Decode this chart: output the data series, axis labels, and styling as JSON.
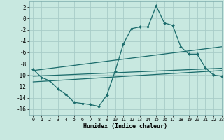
{
  "xlabel": "Humidex (Indice chaleur)",
  "xlim": [
    -0.5,
    23
  ],
  "ylim": [
    -17,
    3
  ],
  "yticks": [
    2,
    0,
    -2,
    -4,
    -6,
    -8,
    -10,
    -12,
    -14,
    -16
  ],
  "xticks": [
    0,
    1,
    2,
    3,
    4,
    5,
    6,
    7,
    8,
    9,
    10,
    11,
    12,
    13,
    14,
    15,
    16,
    17,
    18,
    19,
    20,
    21,
    22,
    23
  ],
  "bg_color": "#c8e8e0",
  "grid_color": "#a8ccc8",
  "line_color": "#1a6b6b",
  "curve_x": [
    0,
    1,
    2,
    3,
    4,
    5,
    6,
    7,
    8,
    9,
    10,
    11,
    12,
    13,
    14,
    15,
    16,
    17,
    18,
    19,
    20,
    21,
    22,
    23
  ],
  "curve_y": [
    -9.0,
    -10.4,
    -11.0,
    -12.4,
    -13.4,
    -14.8,
    -15.0,
    -15.2,
    -15.5,
    -13.5,
    -9.3,
    -4.5,
    -1.8,
    -1.5,
    -1.5,
    2.2,
    -0.8,
    -1.2,
    -5.0,
    -6.3,
    -6.3,
    -8.7,
    -10.0,
    -10.2
  ],
  "trend1_x": [
    0,
    23
  ],
  "trend1_y": [
    -9.2,
    -5.0
  ],
  "trend2_x": [
    0,
    23
  ],
  "trend2_y": [
    -10.2,
    -8.8
  ],
  "trend3_x": [
    0,
    23
  ],
  "trend3_y": [
    -11.2,
    -9.2
  ]
}
